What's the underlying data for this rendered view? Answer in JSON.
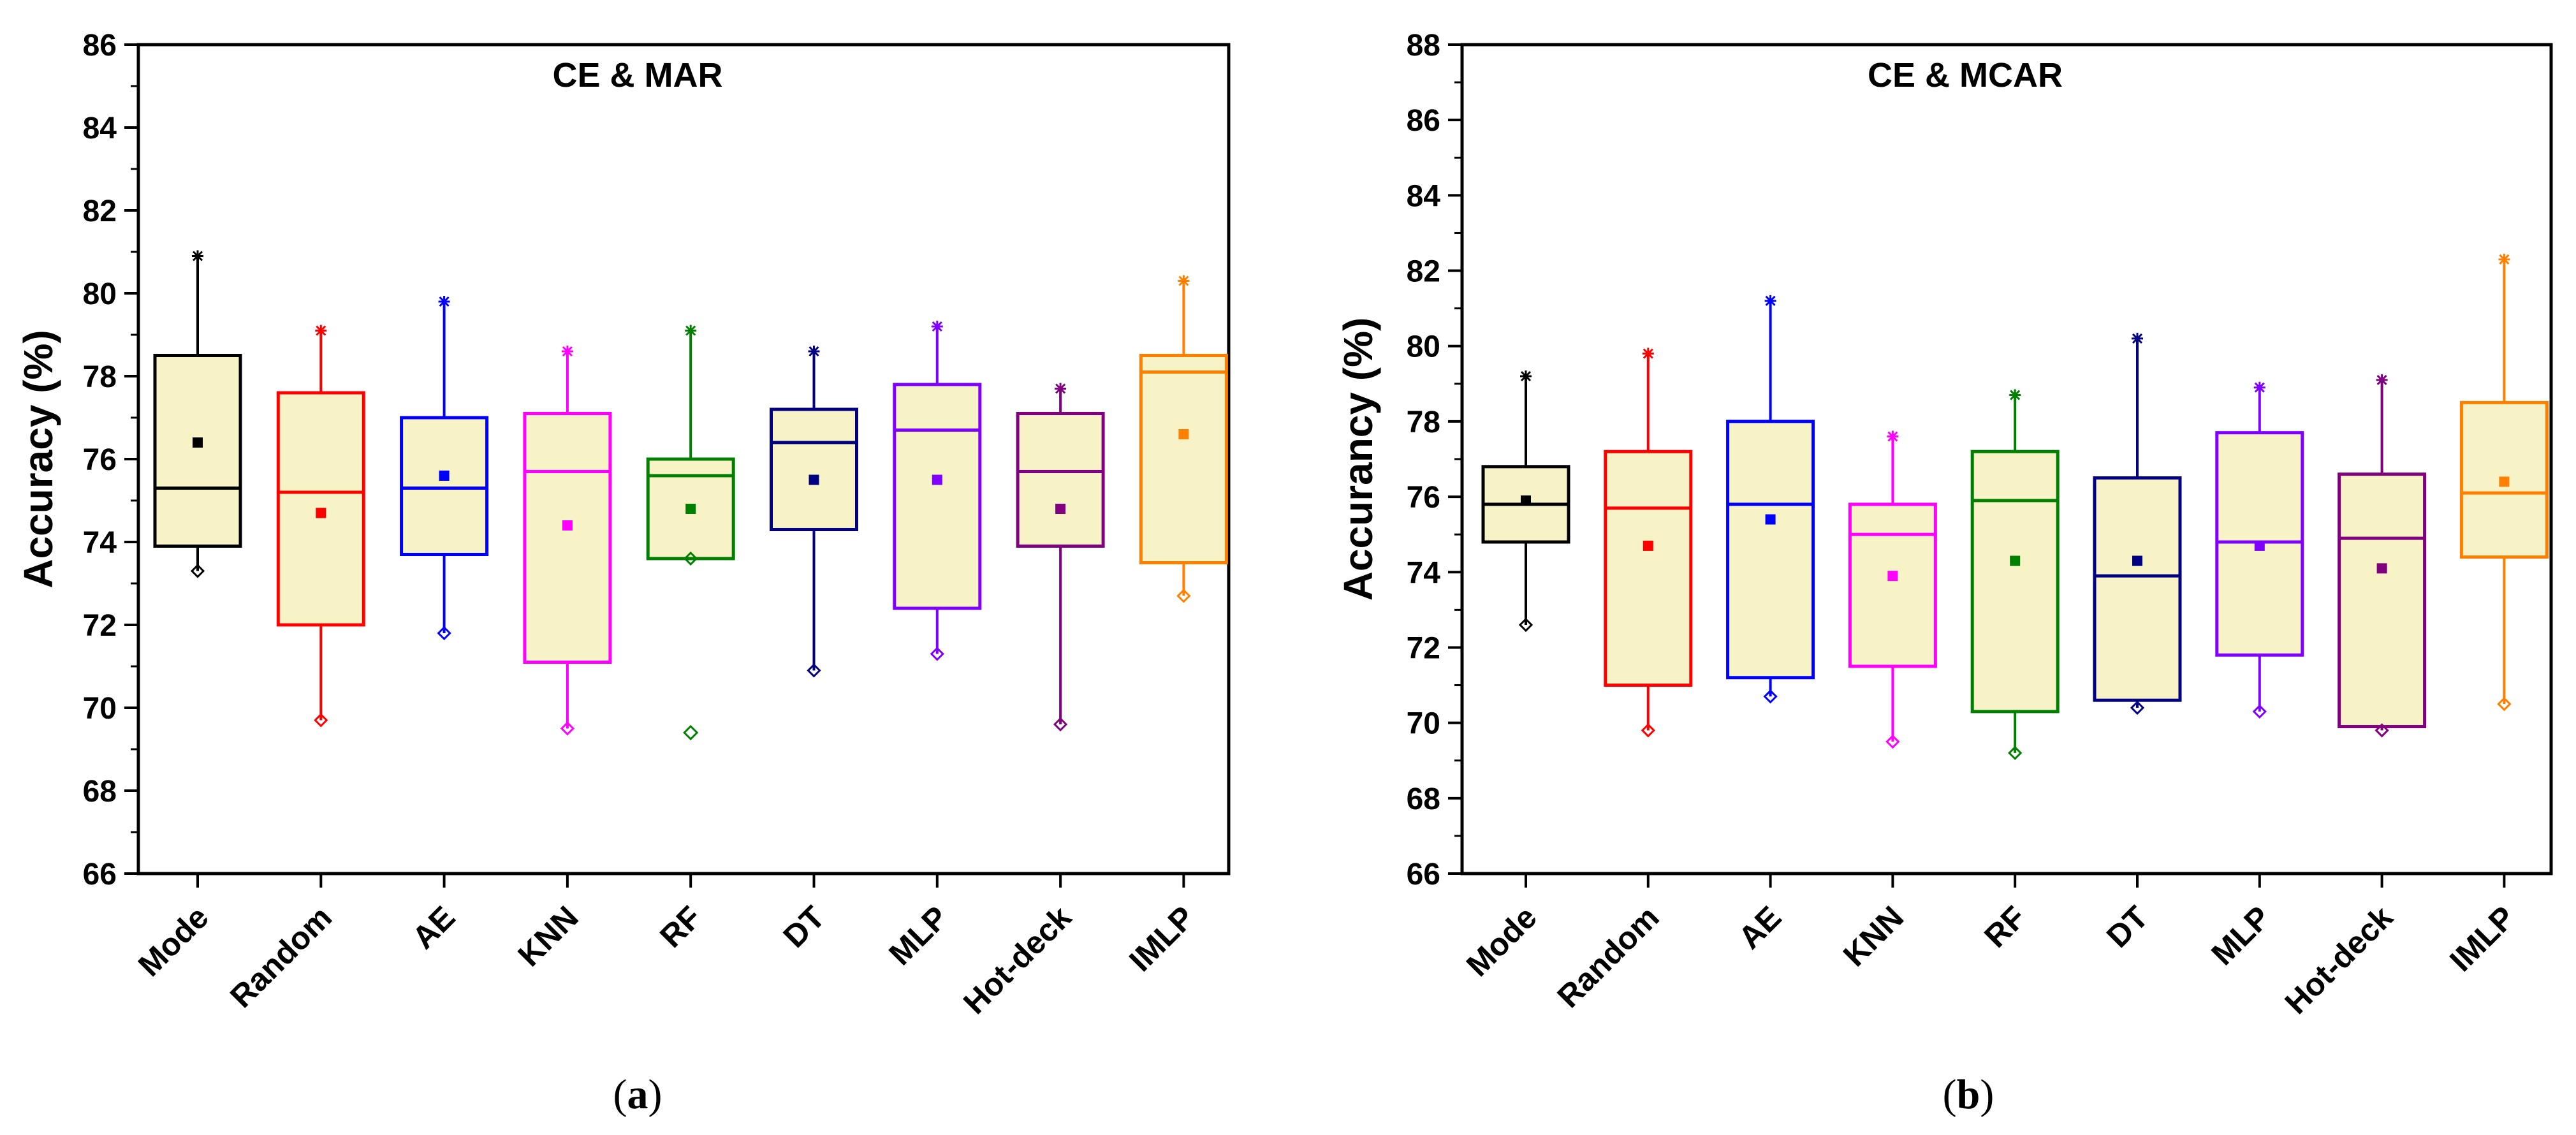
{
  "chart_data": [
    {
      "type": "box",
      "panel": "a",
      "title": "CE & MAR",
      "ylabel": "Accuracy (%)",
      "xlabel": "",
      "ylim": [
        66,
        86
      ],
      "yticks": [
        "66",
        "68",
        "70",
        "72",
        "74",
        "76",
        "78",
        "80",
        "82",
        "84",
        "86"
      ],
      "categories": [
        "Mode",
        "Random",
        "AE",
        "KNN",
        "RF",
        "DT",
        "MLP",
        "Hot-deck",
        "IMLP"
      ],
      "colors": [
        "#000000",
        "#ff0000",
        "#0000ff",
        "#ff00ff",
        "#008000",
        "#000080",
        "#8000ff",
        "#800080",
        "#ff8000"
      ],
      "box_fill": "#f7f3c6",
      "boxes": [
        {
          "min": 73.3,
          "q1": 73.9,
          "median": 75.3,
          "q3": 78.5,
          "max": 80.9,
          "mean": 76.4,
          "outliers": []
        },
        {
          "min": 69.7,
          "q1": 72.0,
          "median": 75.2,
          "q3": 77.6,
          "max": 79.1,
          "mean": 74.7,
          "outliers": []
        },
        {
          "min": 71.8,
          "q1": 73.7,
          "median": 75.3,
          "q3": 77.0,
          "max": 79.8,
          "mean": 75.6,
          "outliers": []
        },
        {
          "min": 69.5,
          "q1": 71.1,
          "median": 75.7,
          "q3": 77.1,
          "max": 78.6,
          "mean": 74.4,
          "outliers": []
        },
        {
          "min": 73.6,
          "q1": 73.6,
          "median": 75.6,
          "q3": 76.0,
          "max": 79.1,
          "mean": 74.8,
          "outliers": [
            69.4
          ]
        },
        {
          "min": 70.9,
          "q1": 74.3,
          "median": 76.4,
          "q3": 77.2,
          "max": 78.6,
          "mean": 75.5,
          "outliers": []
        },
        {
          "min": 71.3,
          "q1": 72.4,
          "median": 76.7,
          "q3": 77.8,
          "max": 79.2,
          "mean": 75.5,
          "outliers": []
        },
        {
          "min": 69.6,
          "q1": 73.9,
          "median": 75.7,
          "q3": 77.1,
          "max": 77.7,
          "mean": 74.8,
          "outliers": []
        },
        {
          "min": 72.7,
          "q1": 73.5,
          "median": 78.1,
          "q3": 78.5,
          "max": 80.3,
          "mean": 76.6,
          "outliers": []
        }
      ]
    },
    {
      "type": "box",
      "panel": "b",
      "title": "CE & MCAR",
      "ylabel": "Accurancy (%)",
      "xlabel": "",
      "ylim": [
        66,
        88
      ],
      "yticks": [
        "66",
        "68",
        "70",
        "72",
        "74",
        "76",
        "78",
        "80",
        "82",
        "84",
        "86",
        "88"
      ],
      "categories": [
        "Mode",
        "Random",
        "AE",
        "KNN",
        "RF",
        "DT",
        "MLP",
        "Hot-deck",
        "IMLP"
      ],
      "colors": [
        "#000000",
        "#ff0000",
        "#0000ff",
        "#ff00ff",
        "#008000",
        "#000080",
        "#8000ff",
        "#800080",
        "#ff8000"
      ],
      "box_fill": "#f7f3c6",
      "boxes": [
        {
          "min": 72.6,
          "q1": 74.8,
          "median": 75.8,
          "q3": 76.8,
          "max": 79.2,
          "mean": 75.9,
          "outliers": []
        },
        {
          "min": 69.8,
          "q1": 71.0,
          "median": 75.7,
          "q3": 77.2,
          "max": 79.8,
          "mean": 74.7,
          "outliers": []
        },
        {
          "min": 70.7,
          "q1": 71.2,
          "median": 75.8,
          "q3": 78.0,
          "max": 81.2,
          "mean": 75.4,
          "outliers": []
        },
        {
          "min": 69.5,
          "q1": 71.5,
          "median": 75.0,
          "q3": 75.8,
          "max": 77.6,
          "mean": 73.9,
          "outliers": []
        },
        {
          "min": 69.2,
          "q1": 70.3,
          "median": 75.9,
          "q3": 77.2,
          "max": 78.7,
          "mean": 74.3,
          "outliers": []
        },
        {
          "min": 70.4,
          "q1": 70.6,
          "median": 73.9,
          "q3": 76.5,
          "max": 80.2,
          "mean": 74.3,
          "outliers": []
        },
        {
          "min": 70.3,
          "q1": 71.8,
          "median": 74.8,
          "q3": 77.7,
          "max": 78.9,
          "mean": 74.7,
          "outliers": []
        },
        {
          "min": 69.8,
          "q1": 69.9,
          "median": 74.9,
          "q3": 76.6,
          "max": 79.1,
          "mean": 74.1,
          "outliers": []
        },
        {
          "min": 70.5,
          "q1": 74.4,
          "median": 76.1,
          "q3": 78.5,
          "max": 82.3,
          "mean": 76.4,
          "outliers": []
        }
      ]
    }
  ],
  "captions": {
    "a_open": "(",
    "a_letter": "a",
    "a_close": ")",
    "b_open": "(",
    "b_letter": "b",
    "b_close": ")"
  }
}
